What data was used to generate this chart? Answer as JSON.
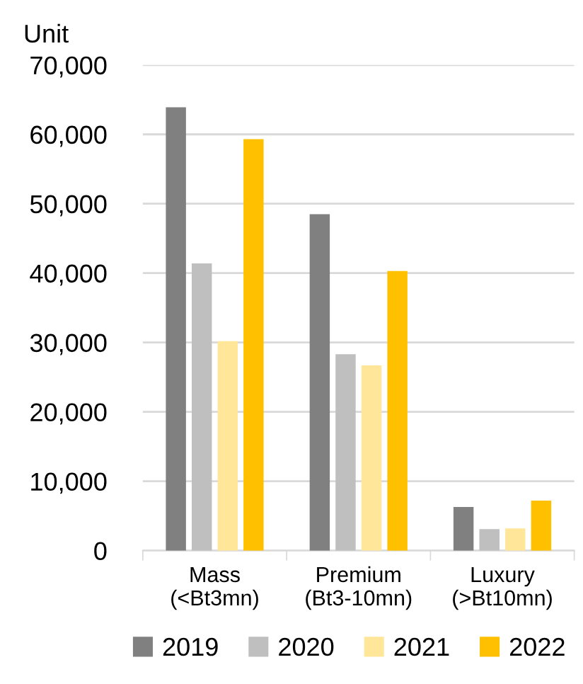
{
  "chart_data": {
    "type": "bar",
    "ylabel": "Unit",
    "categories": [
      "Mass\n(<Bt3mn)",
      "Premium\n(Bt3-10mn)",
      "Luxury\n(>Bt10mn)"
    ],
    "series": [
      {
        "name": "2019",
        "color": "#808080",
        "values": [
          63900,
          48500,
          6300
        ]
      },
      {
        "name": "2020",
        "color": "#bfbfbf",
        "values": [
          41400,
          28300,
          3100
        ]
      },
      {
        "name": "2021",
        "color": "#ffe699",
        "values": [
          30200,
          26700,
          3200
        ]
      },
      {
        "name": "2022",
        "color": "#ffc000",
        "values": [
          59300,
          40300,
          7200
        ]
      }
    ],
    "ylim": [
      0,
      70000
    ],
    "yticks": [
      {
        "value": 0,
        "label": "0"
      },
      {
        "value": 10000,
        "label": "10,000"
      },
      {
        "value": 20000,
        "label": "20,000"
      },
      {
        "value": 30000,
        "label": "30,000"
      },
      {
        "value": 40000,
        "label": "40,000"
      },
      {
        "value": 50000,
        "label": "50,000"
      },
      {
        "value": 60000,
        "label": "60,000"
      },
      {
        "value": 70000,
        "label": "70,000"
      }
    ],
    "grid": "y",
    "legend": "bottom"
  }
}
